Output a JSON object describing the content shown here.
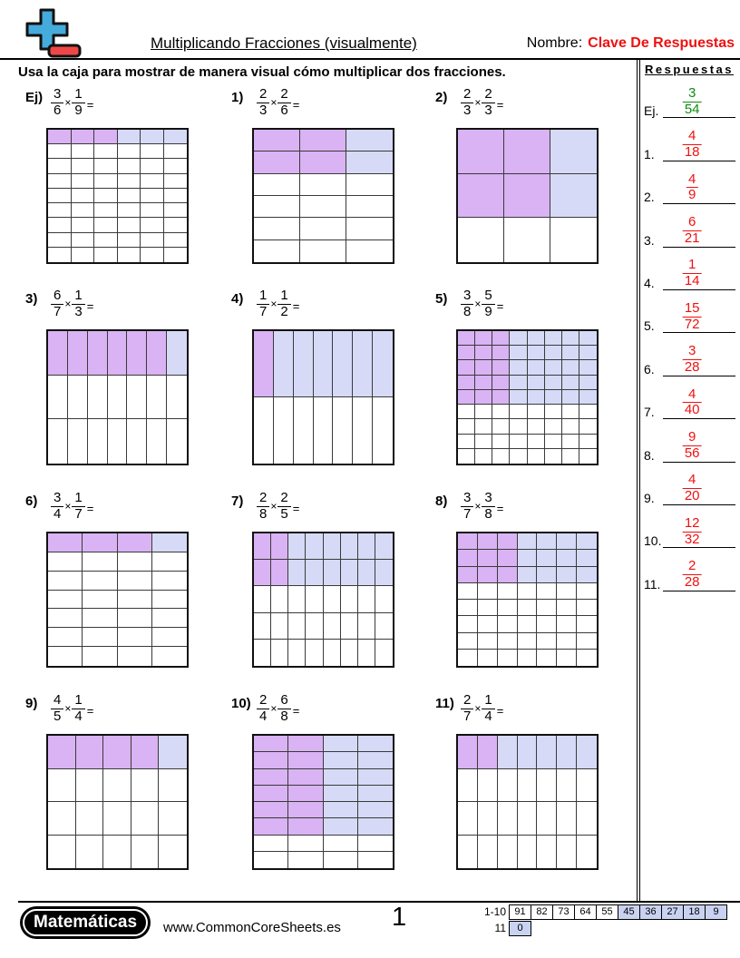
{
  "header": {
    "logo_icon": "plus-minus-icon",
    "title": "Multiplicando Fracciones (visualmente)",
    "name_label": "Nombre:",
    "name_value": "Clave De Respuestas"
  },
  "instruction": "Usa la caja para mostrar de manera visual cómo multiplicar dos fracciones.",
  "symbols": {
    "times": "×",
    "equals": "="
  },
  "problems": [
    {
      "label": "Ej)",
      "f1": {
        "n": "3",
        "d": "6"
      },
      "f2": {
        "n": "1",
        "d": "9"
      },
      "grid": {
        "cols": 6,
        "rows": 9,
        "shaded_cols": 3,
        "shaded_rows": 1
      }
    },
    {
      "label": "1)",
      "f1": {
        "n": "2",
        "d": "3"
      },
      "f2": {
        "n": "2",
        "d": "6"
      },
      "grid": {
        "cols": 3,
        "rows": 6,
        "shaded_cols": 2,
        "shaded_rows": 2
      }
    },
    {
      "label": "2)",
      "f1": {
        "n": "2",
        "d": "3"
      },
      "f2": {
        "n": "2",
        "d": "3"
      },
      "grid": {
        "cols": 3,
        "rows": 3,
        "shaded_cols": 2,
        "shaded_rows": 2
      }
    },
    {
      "label": "3)",
      "f1": {
        "n": "6",
        "d": "7"
      },
      "f2": {
        "n": "1",
        "d": "3"
      },
      "grid": {
        "cols": 7,
        "rows": 3,
        "shaded_cols": 6,
        "shaded_rows": 1
      }
    },
    {
      "label": "4)",
      "f1": {
        "n": "1",
        "d": "7"
      },
      "f2": {
        "n": "1",
        "d": "2"
      },
      "grid": {
        "cols": 7,
        "rows": 2,
        "shaded_cols": 1,
        "shaded_rows": 1
      }
    },
    {
      "label": "5)",
      "f1": {
        "n": "3",
        "d": "8"
      },
      "f2": {
        "n": "5",
        "d": "9"
      },
      "grid": {
        "cols": 8,
        "rows": 9,
        "shaded_cols": 3,
        "shaded_rows": 5
      }
    },
    {
      "label": "6)",
      "f1": {
        "n": "3",
        "d": "4"
      },
      "f2": {
        "n": "1",
        "d": "7"
      },
      "grid": {
        "cols": 4,
        "rows": 7,
        "shaded_cols": 3,
        "shaded_rows": 1
      }
    },
    {
      "label": "7)",
      "f1": {
        "n": "2",
        "d": "8"
      },
      "f2": {
        "n": "2",
        "d": "5"
      },
      "grid": {
        "cols": 8,
        "rows": 5,
        "shaded_cols": 2,
        "shaded_rows": 2
      }
    },
    {
      "label": "8)",
      "f1": {
        "n": "3",
        "d": "7"
      },
      "f2": {
        "n": "3",
        "d": "8"
      },
      "grid": {
        "cols": 7,
        "rows": 8,
        "shaded_cols": 3,
        "shaded_rows": 3
      }
    },
    {
      "label": "9)",
      "f1": {
        "n": "4",
        "d": "5"
      },
      "f2": {
        "n": "1",
        "d": "4"
      },
      "grid": {
        "cols": 5,
        "rows": 4,
        "shaded_cols": 4,
        "shaded_rows": 1
      }
    },
    {
      "label": "10)",
      "f1": {
        "n": "2",
        "d": "4"
      },
      "f2": {
        "n": "6",
        "d": "8"
      },
      "grid": {
        "cols": 4,
        "rows": 8,
        "shaded_cols": 2,
        "shaded_rows": 6
      }
    },
    {
      "label": "11)",
      "f1": {
        "n": "2",
        "d": "7"
      },
      "f2": {
        "n": "1",
        "d": "4"
      },
      "grid": {
        "cols": 7,
        "rows": 4,
        "shaded_cols": 2,
        "shaded_rows": 1
      }
    }
  ],
  "answers": {
    "title": "Respuestas",
    "items": [
      {
        "label": "Ej.",
        "n": "3",
        "d": "54",
        "color": "green"
      },
      {
        "label": "1.",
        "n": "4",
        "d": "18",
        "color": "red"
      },
      {
        "label": "2.",
        "n": "4",
        "d": "9",
        "color": "red"
      },
      {
        "label": "3.",
        "n": "6",
        "d": "21",
        "color": "red"
      },
      {
        "label": "4.",
        "n": "1",
        "d": "14",
        "color": "red"
      },
      {
        "label": "5.",
        "n": "15",
        "d": "72",
        "color": "red"
      },
      {
        "label": "6.",
        "n": "3",
        "d": "28",
        "color": "red"
      },
      {
        "label": "7.",
        "n": "4",
        "d": "40",
        "color": "red"
      },
      {
        "label": "8.",
        "n": "9",
        "d": "56",
        "color": "red"
      },
      {
        "label": "9.",
        "n": "4",
        "d": "20",
        "color": "red"
      },
      {
        "label": "10.",
        "n": "12",
        "d": "32",
        "color": "red"
      },
      {
        "label": "11.",
        "n": "2",
        "d": "28",
        "color": "red"
      }
    ]
  },
  "colors": {
    "overlap_fill": "#d9b3f3",
    "row_fill": "#d6daf7",
    "answer_red": "#ee1111",
    "answer_green": "#0d8c0d",
    "score_highlight": "#c9d2f1",
    "logo_blue": "#45aadc",
    "logo_red": "#ef4747"
  },
  "footer": {
    "brand": "Matemáticas",
    "website": "www.CommonCoreSheets.es",
    "page_number": "1",
    "score_table": {
      "rows": [
        {
          "label": "1-10",
          "cells": [
            {
              "v": "91",
              "hl": false
            },
            {
              "v": "82",
              "hl": false
            },
            {
              "v": "73",
              "hl": false
            },
            {
              "v": "64",
              "hl": false
            },
            {
              "v": "55",
              "hl": false
            },
            {
              "v": "45",
              "hl": true
            },
            {
              "v": "36",
              "hl": true
            },
            {
              "v": "27",
              "hl": true
            },
            {
              "v": "18",
              "hl": true
            },
            {
              "v": "9",
              "hl": true
            }
          ]
        },
        {
          "label": "11",
          "cells": [
            {
              "v": "0",
              "hl": true
            }
          ]
        }
      ]
    }
  }
}
